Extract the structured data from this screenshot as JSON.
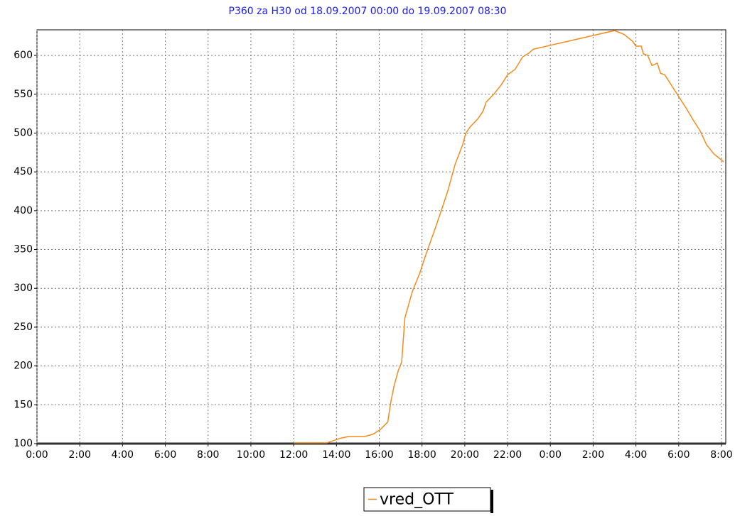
{
  "chart_data": {
    "type": "line",
    "title": "P360 za H30 od 18.09.2007 00:00 do 19.09.2007 08:30",
    "x": [
      12.0,
      13.55,
      14.2,
      14.55,
      15.3,
      15.7,
      16.05,
      16.4,
      16.55,
      16.7,
      16.9,
      17.05,
      17.2,
      17.55,
      17.9,
      18.2,
      18.55,
      18.9,
      19.2,
      19.55,
      19.9,
      20.05,
      20.25,
      20.6,
      20.85,
      21.0,
      21.35,
      21.7,
      22.0,
      22.35,
      22.7,
      23.0,
      23.2,
      27.0,
      27.45,
      27.85,
      28.0,
      28.25,
      28.35,
      28.55,
      28.75,
      29.0,
      29.15,
      29.35,
      29.65,
      30.0,
      30.35,
      30.65,
      31.0,
      31.3,
      31.65,
      32.1
    ],
    "series": [
      {
        "name": "vred_OTT",
        "color": "#f28c1c",
        "values": [
          101,
          101,
          107,
          109,
          109,
          112,
          118,
          128,
          155,
          175,
          195,
          205,
          262,
          296,
          320,
          345,
          372,
          400,
          425,
          460,
          485,
          500,
          508,
          518,
          528,
          540,
          550,
          562,
          575,
          582,
          598,
          603,
          608,
          632,
          627,
          618,
          612,
          612,
          602,
          600,
          587,
          590,
          577,
          575,
          562,
          547,
          532,
          518,
          503,
          485,
          473,
          463
        ]
      }
    ],
    "xlim": [
      0,
      32.2
    ],
    "xticks": [
      {
        "value": 0,
        "label": "0:00"
      },
      {
        "value": 2,
        "label": "2:00"
      },
      {
        "value": 4,
        "label": "4:00"
      },
      {
        "value": 6,
        "label": "6:00"
      },
      {
        "value": 8,
        "label": "8:00"
      },
      {
        "value": 10,
        "label": "10:00"
      },
      {
        "value": 12,
        "label": "12:00"
      },
      {
        "value": 14,
        "label": "14:00"
      },
      {
        "value": 16,
        "label": "16:00"
      },
      {
        "value": 18,
        "label": "18:00"
      },
      {
        "value": 20,
        "label": "20:00"
      },
      {
        "value": 22,
        "label": "22:00"
      },
      {
        "value": 24,
        "label": "0:00"
      },
      {
        "value": 26,
        "label": "2:00"
      },
      {
        "value": 28,
        "label": "4:00"
      },
      {
        "value": 30,
        "label": "6:00"
      },
      {
        "value": 32,
        "label": "8:00"
      }
    ],
    "ylim": [
      100,
      633
    ],
    "yticks": [
      100,
      150,
      200,
      250,
      300,
      350,
      400,
      450,
      500,
      550,
      600
    ],
    "grid": true
  }
}
